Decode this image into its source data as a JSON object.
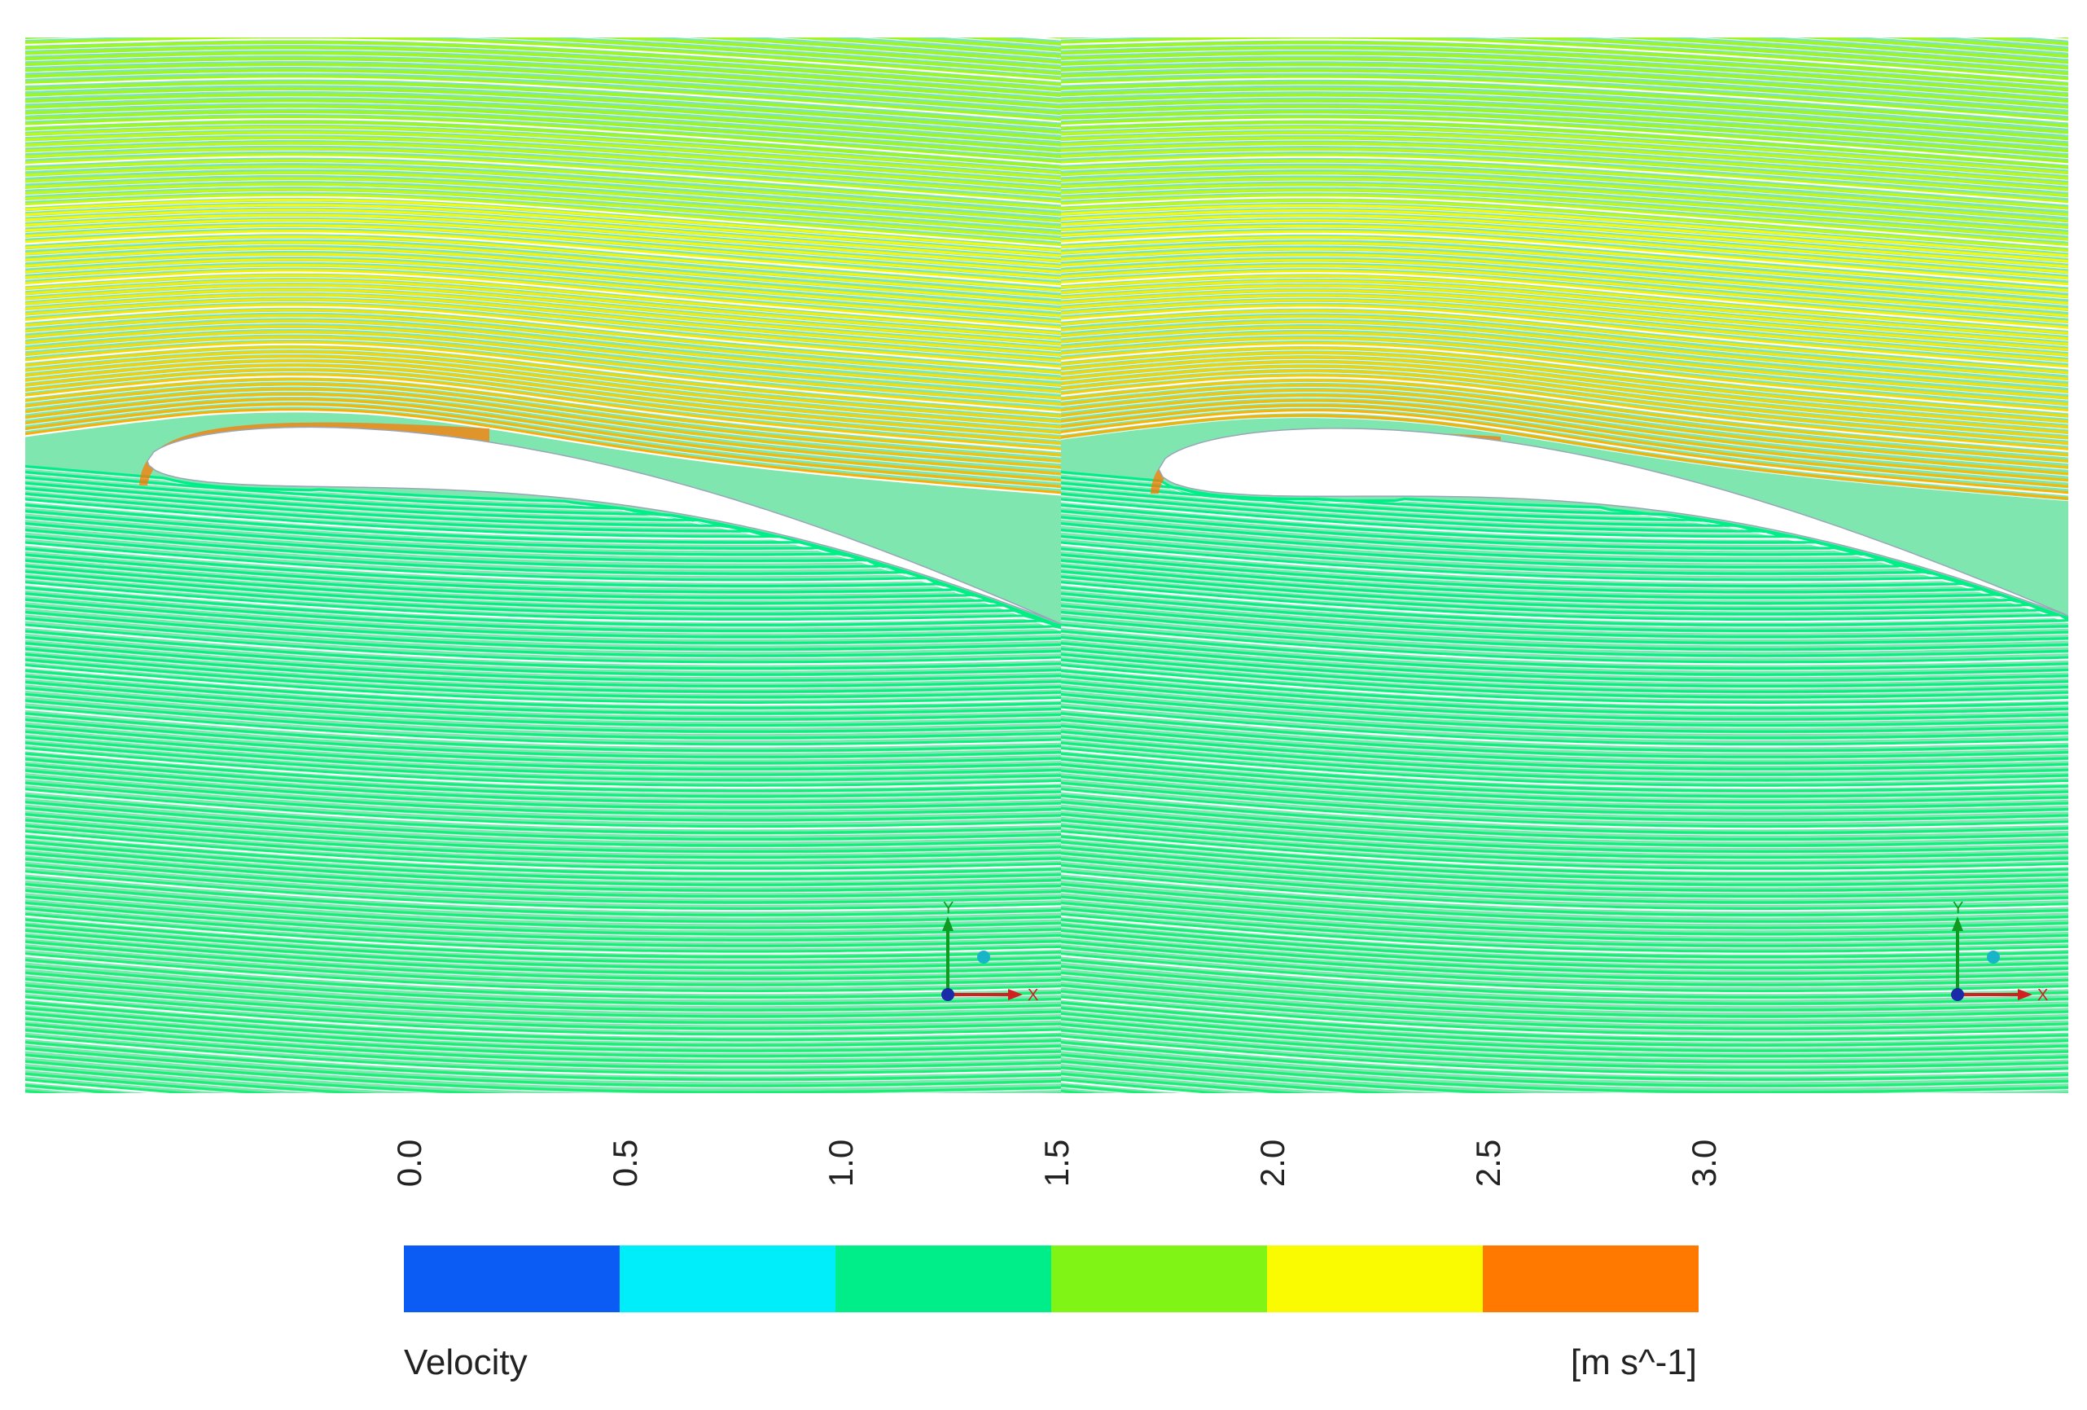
{
  "colors": {
    "background": "#ffffff",
    "band_0": "#0a5cf5",
    "band_1": "#00eefa",
    "band_2": "#00ee8a",
    "band_3": "#80f515",
    "band_4": "#fafa00",
    "band_5": "#ff7800"
  },
  "panels": [
    {
      "axis": {
        "y_label": "Y",
        "x_label": "X"
      }
    },
    {
      "axis": {
        "y_label": "Y",
        "x_label": "X"
      }
    }
  ],
  "legend": {
    "title": "Velocity",
    "unit": "[m s^-1]",
    "ticks": [
      "0.0",
      "0.5",
      "1.0",
      "1.5",
      "2.0",
      "2.5",
      "3.0"
    ],
    "range": [
      0.0,
      3.0
    ]
  }
}
